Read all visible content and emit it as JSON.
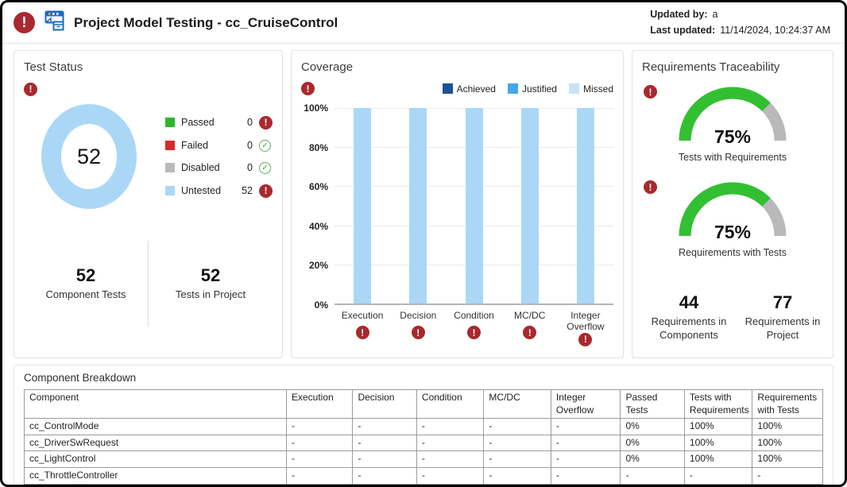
{
  "header": {
    "title": "Project Model Testing - cc_CruiseControl",
    "updated_by_label": "Updated by:",
    "updated_by_value": "a",
    "last_updated_label": "Last updated:",
    "last_updated_value": "11/14/2024, 10:24:37 AM"
  },
  "colors": {
    "alert_red": "#a8292e",
    "success_green": "#3fa33f",
    "passed_green": "#2eb52e",
    "failed_red": "#d62a2a",
    "disabled_gray": "#b9b9b9",
    "untested_blue": "#abd7f7",
    "achieved_navy": "#1b5299",
    "justified_blue": "#45a7f0",
    "missed_paleblue": "#c7e3f9",
    "gauge_green": "#32c032",
    "gauge_gray": "#b9b9b9"
  },
  "test_status": {
    "title": "Test Status",
    "donut_total": "52",
    "legend": [
      {
        "label": "Passed",
        "value": "0",
        "color": "#2eb52e",
        "status": "alert"
      },
      {
        "label": "Failed",
        "value": "0",
        "color": "#d62a2a",
        "status": "ok"
      },
      {
        "label": "Disabled",
        "value": "0",
        "color": "#b9b9b9",
        "status": "ok"
      },
      {
        "label": "Untested",
        "value": "52",
        "color": "#abd7f7",
        "status": "alert"
      }
    ],
    "stats": [
      {
        "value": "52",
        "label": "Component Tests"
      },
      {
        "value": "52",
        "label": "Tests in Project"
      }
    ]
  },
  "coverage": {
    "title": "Coverage",
    "legend": [
      {
        "label": "Achieved",
        "color": "#1b5299"
      },
      {
        "label": "Justified",
        "color": "#45a7f0"
      },
      {
        "label": "Missed",
        "color": "#c7e3f9"
      }
    ],
    "y_ticks": [
      "100%",
      "80%",
      "60%",
      "40%",
      "20%",
      "0%"
    ],
    "categories": [
      "Execution",
      "Decision",
      "Condition",
      "MC/DC",
      "Integer Overflow"
    ],
    "values": [
      100,
      100,
      100,
      100,
      100
    ],
    "bar_color": "#abd7f7"
  },
  "requirements": {
    "title": "Requirements Traceability",
    "gauges": [
      {
        "value": 75,
        "display": "75%",
        "label": "Tests with Requirements"
      },
      {
        "value": 75,
        "display": "75%",
        "label": "Requirements with Tests"
      }
    ],
    "stats": [
      {
        "value": "44",
        "label": "Requirements in Components"
      },
      {
        "value": "77",
        "label": "Requirements in Project"
      }
    ]
  },
  "breakdown": {
    "title": "Component Breakdown",
    "columns": [
      "Component",
      "Execution",
      "Decision",
      "Condition",
      "MC/DC",
      "Integer Overflow",
      "Passed Tests",
      "Tests with Requirements",
      "Requirements with Tests"
    ],
    "rows": [
      [
        "cc_ControlMode",
        "-",
        "-",
        "-",
        "-",
        "-",
        "0%",
        "100%",
        "100%"
      ],
      [
        "cc_DriverSwRequest",
        "-",
        "-",
        "-",
        "-",
        "-",
        "0%",
        "100%",
        "100%"
      ],
      [
        "cc_LightControl",
        "-",
        "-",
        "-",
        "-",
        "-",
        "0%",
        "100%",
        "100%"
      ],
      [
        "cc_ThrottleController",
        "-",
        "-",
        "-",
        "-",
        "-",
        "-",
        "-",
        "-"
      ]
    ]
  },
  "chart_data": [
    {
      "type": "pie",
      "subtype": "donut",
      "title": "Test Status",
      "categories": [
        "Passed",
        "Failed",
        "Disabled",
        "Untested"
      ],
      "values": [
        0,
        0,
        0,
        52
      ],
      "center_label": "52"
    },
    {
      "type": "bar",
      "title": "Coverage",
      "categories": [
        "Execution",
        "Decision",
        "Condition",
        "MC/DC",
        "Integer Overflow"
      ],
      "series": [
        {
          "name": "Achieved",
          "values": [
            0,
            0,
            0,
            0,
            0
          ]
        },
        {
          "name": "Justified",
          "values": [
            0,
            0,
            0,
            0,
            0
          ]
        },
        {
          "name": "Missed",
          "values": [
            100,
            100,
            100,
            100,
            100
          ]
        }
      ],
      "ylim": [
        0,
        100
      ],
      "ylabel": "",
      "xlabel": "",
      "y_ticks": [
        "0%",
        "20%",
        "40%",
        "60%",
        "80%",
        "100%"
      ],
      "grid": true,
      "legend_position": "top-right"
    },
    {
      "type": "gauge",
      "title": "Requirements Traceability",
      "gauges": [
        {
          "label": "Tests with Requirements",
          "value": 75,
          "max": 100
        },
        {
          "label": "Requirements with Tests",
          "value": 75,
          "max": 100
        }
      ]
    }
  ]
}
